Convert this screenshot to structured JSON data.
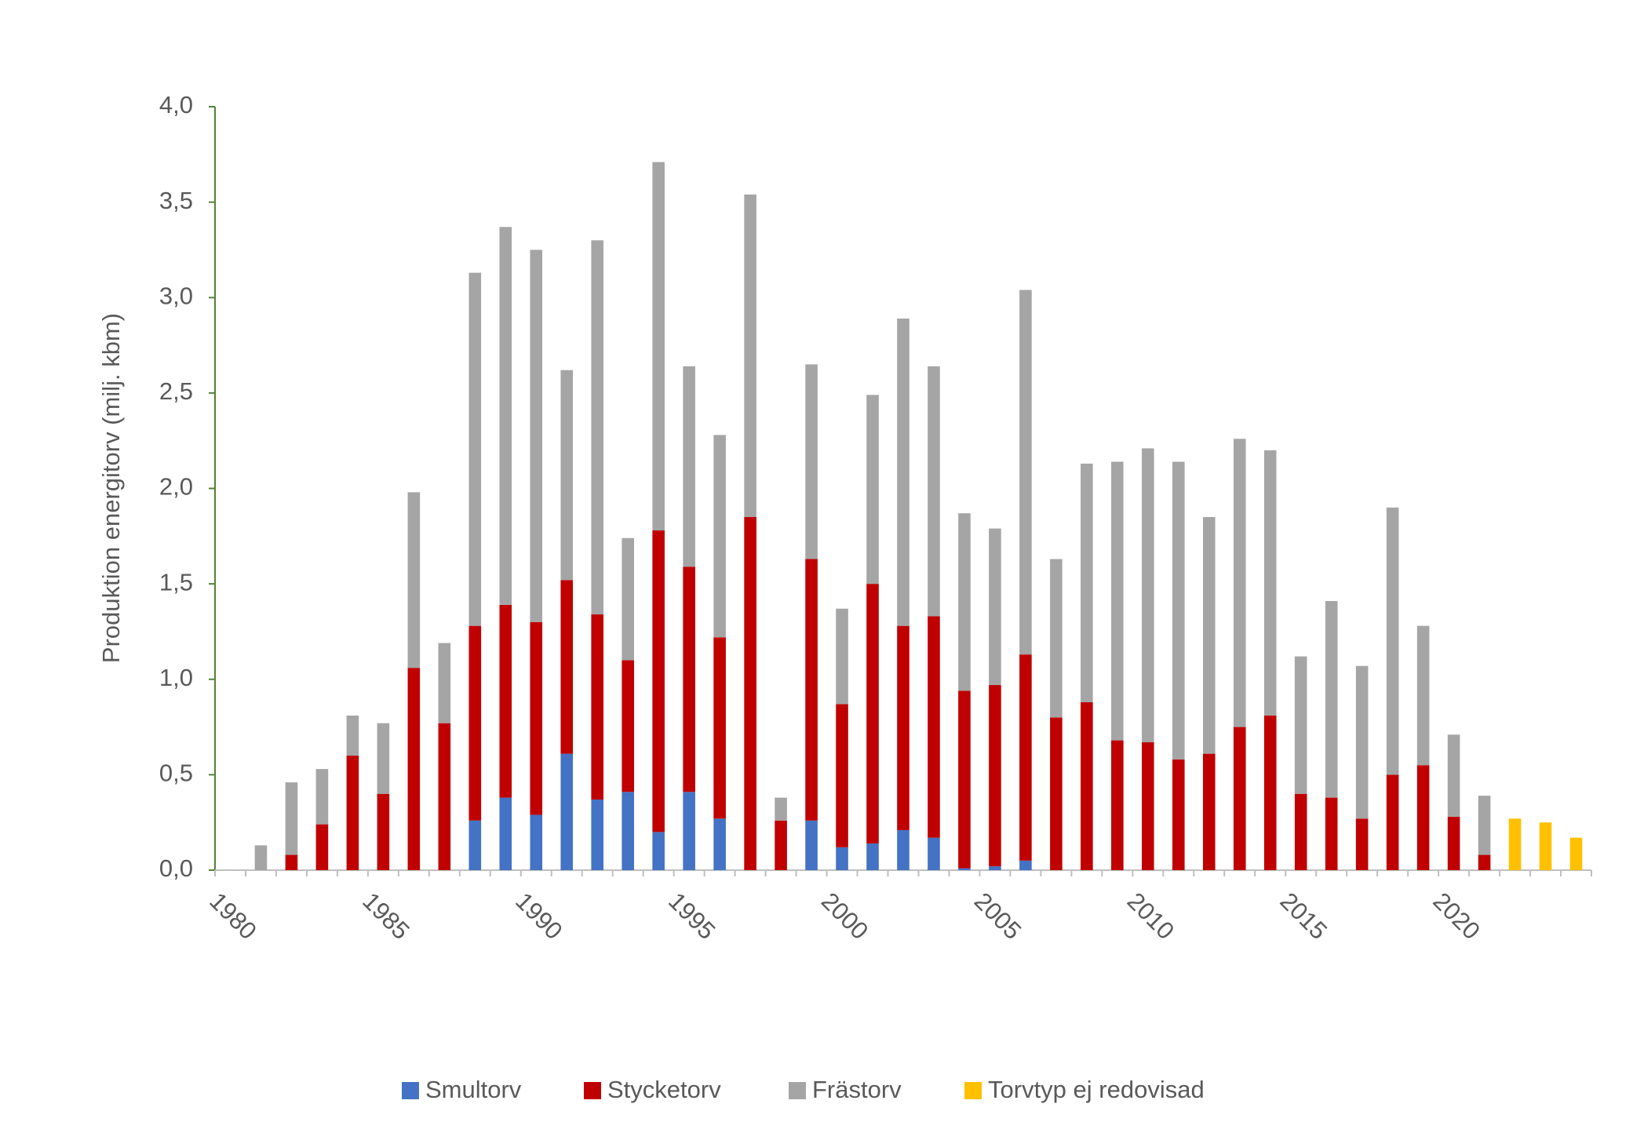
{
  "chart_data": {
    "type": "stacked_bar",
    "y_label": "Produktion energitorv  (milj. kbm)",
    "categories": [
      "1980",
      null,
      null,
      null,
      null,
      "1985",
      null,
      null,
      null,
      null,
      "1990",
      null,
      null,
      null,
      null,
      "1995",
      null,
      null,
      null,
      null,
      "2000",
      null,
      null,
      null,
      null,
      "2005",
      null,
      null,
      null,
      null,
      "2010",
      null,
      null,
      null,
      null,
      "2015",
      null,
      null,
      null,
      null,
      "2020",
      null,
      null,
      null,
      null
    ],
    "series": [
      {
        "name": "Smultorv",
        "color": "#4472c4",
        "values": [
          null,
          null,
          null,
          null,
          null,
          null,
          null,
          null,
          0.26,
          0.38,
          0.29,
          0.61,
          0.37,
          0.41,
          0.2,
          0.41,
          0.27,
          null,
          null,
          0.26,
          0.12,
          0.14,
          0.21,
          0.17,
          0.01,
          0.02,
          0.05,
          null,
          null,
          null,
          null,
          null,
          null,
          null,
          null,
          null,
          null,
          null,
          null,
          null,
          null,
          null,
          null,
          null,
          null
        ]
      },
      {
        "name": "Stycketorv",
        "color": "#c00000",
        "values": [
          null,
          null,
          0.08,
          0.24,
          0.6,
          0.4,
          1.06,
          0.77,
          1.02,
          1.01,
          1.01,
          0.91,
          0.97,
          0.69,
          1.58,
          1.18,
          0.95,
          1.85,
          0.26,
          1.37,
          0.75,
          1.36,
          1.07,
          1.16,
          0.93,
          0.95,
          1.08,
          0.8,
          0.88,
          0.68,
          0.67,
          0.58,
          0.61,
          0.75,
          0.81,
          0.4,
          0.38,
          0.27,
          0.5,
          0.55,
          0.28,
          0.08,
          null,
          null,
          null
        ]
      },
      {
        "name": "Frästorv",
        "color": "#a5a5a5",
        "values": [
          null,
          0.13,
          0.38,
          0.29,
          0.21,
          0.37,
          0.92,
          0.42,
          1.85,
          1.98,
          1.95,
          1.1,
          1.96,
          0.64,
          1.93,
          1.05,
          1.06,
          1.69,
          0.12,
          1.02,
          0.5,
          0.99,
          1.61,
          1.31,
          0.93,
          0.82,
          1.91,
          0.83,
          1.25,
          1.46,
          1.54,
          1.56,
          1.24,
          1.51,
          1.39,
          0.72,
          1.03,
          0.8,
          1.4,
          0.73,
          0.43,
          0.31,
          null,
          null,
          null
        ]
      },
      {
        "name": "Torvtyp ej redovisad",
        "color": "#ffc000",
        "values": [
          null,
          null,
          null,
          null,
          null,
          null,
          null,
          null,
          null,
          null,
          null,
          null,
          null,
          null,
          null,
          null,
          null,
          null,
          null,
          null,
          null,
          null,
          null,
          null,
          null,
          null,
          null,
          null,
          null,
          null,
          null,
          null,
          null,
          null,
          null,
          null,
          null,
          null,
          null,
          null,
          null,
          null,
          0.27,
          0.25,
          0.17
        ]
      }
    ],
    "ylim": [
      0,
      4
    ],
    "yticks": [
      {
        "value": 0,
        "label": "0,0"
      },
      {
        "value": 0.5,
        "label": "0,5"
      },
      {
        "value": 1,
        "label": "1,0"
      },
      {
        "value": 1.5,
        "label": "1,5"
      },
      {
        "value": 2,
        "label": "2,0"
      },
      {
        "value": 2.5,
        "label": "2,5"
      },
      {
        "value": 3,
        "label": "3,0"
      },
      {
        "value": 3.5,
        "label": "3,5"
      },
      {
        "value": 4,
        "label": "4,0"
      }
    ],
    "legend": "bottom"
  }
}
